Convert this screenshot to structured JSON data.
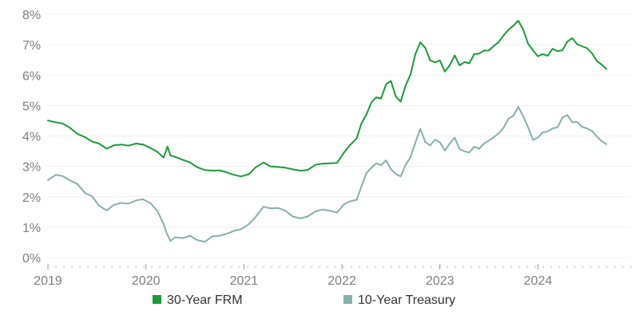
{
  "colors": {
    "frm": "#1a9a3c",
    "treasury": "#86b0ae",
    "axis_text": "#7f7f7f",
    "grid": "#efefef"
  },
  "chart_data": {
    "type": "line",
    "title": "",
    "xlabel": "",
    "ylabel": "",
    "xlim": [
      2019.0,
      2024.95
    ],
    "ylim": [
      0,
      8
    ],
    "y_ticks": [
      0,
      1,
      2,
      3,
      4,
      5,
      6,
      7,
      8
    ],
    "y_tick_labels": [
      "0%",
      "1%",
      "2%",
      "3%",
      "4%",
      "5%",
      "6%",
      "7%",
      "8%"
    ],
    "x_ticks": [
      2019,
      2020,
      2021,
      2022,
      2023,
      2024
    ],
    "x_tick_labels": [
      "2019",
      "2020",
      "2021",
      "2022",
      "2023",
      "2024"
    ],
    "grid": true,
    "legend_position": "bottom",
    "series": [
      {
        "name": "30-Year FRM",
        "color": "#1a9a3c",
        "x": [
          2019.0,
          2019.08,
          2019.15,
          2019.22,
          2019.3,
          2019.38,
          2019.45,
          2019.52,
          2019.6,
          2019.67,
          2019.75,
          2019.82,
          2019.9,
          2019.97,
          2020.05,
          2020.12,
          2020.18,
          2020.22,
          2020.25,
          2020.3,
          2020.38,
          2020.45,
          2020.52,
          2020.6,
          2020.68,
          2020.75,
          2020.82,
          2020.9,
          2020.97,
          2021.05,
          2021.12,
          2021.2,
          2021.27,
          2021.35,
          2021.42,
          2021.5,
          2021.58,
          2021.65,
          2021.73,
          2021.8,
          2021.88,
          2021.95,
          2022.02,
          2022.08,
          2022.15,
          2022.2,
          2022.25,
          2022.3,
          2022.35,
          2022.4,
          2022.45,
          2022.5,
          2022.55,
          2022.6,
          2022.65,
          2022.7,
          2022.75,
          2022.8,
          2022.85,
          2022.9,
          2022.95,
          2023.0,
          2023.05,
          2023.1,
          2023.15,
          2023.2,
          2023.25,
          2023.3,
          2023.35,
          2023.4,
          2023.45,
          2023.5,
          2023.55,
          2023.6,
          2023.65,
          2023.7,
          2023.75,
          2023.8,
          2023.85,
          2023.9,
          2023.95,
          2024.0,
          2024.05,
          2024.1,
          2024.15,
          2024.2,
          2024.25,
          2024.3,
          2024.35,
          2024.4,
          2024.45,
          2024.5,
          2024.55,
          2024.6,
          2024.65,
          2024.7
        ],
        "values": [
          4.51,
          4.45,
          4.41,
          4.28,
          4.07,
          3.96,
          3.82,
          3.75,
          3.58,
          3.69,
          3.72,
          3.68,
          3.75,
          3.72,
          3.6,
          3.47,
          3.29,
          3.65,
          3.36,
          3.31,
          3.21,
          3.13,
          2.98,
          2.88,
          2.86,
          2.87,
          2.81,
          2.72,
          2.67,
          2.74,
          2.97,
          3.13,
          3.0,
          2.98,
          2.96,
          2.9,
          2.86,
          2.88,
          3.05,
          3.09,
          3.1,
          3.11,
          3.45,
          3.69,
          3.92,
          4.42,
          4.7,
          5.1,
          5.27,
          5.23,
          5.7,
          5.81,
          5.3,
          5.13,
          5.66,
          6.02,
          6.7,
          7.08,
          6.9,
          6.49,
          6.42,
          6.48,
          6.12,
          6.32,
          6.65,
          6.32,
          6.43,
          6.39,
          6.69,
          6.71,
          6.81,
          6.81,
          6.96,
          7.09,
          7.31,
          7.49,
          7.63,
          7.79,
          7.5,
          7.03,
          6.82,
          6.62,
          6.69,
          6.64,
          6.87,
          6.79,
          6.82,
          7.1,
          7.22,
          7.02,
          6.95,
          6.89,
          6.73,
          6.47,
          6.35,
          6.2
        ]
      },
      {
        "name": "10-Year Treasury",
        "color": "#86b0ae",
        "x": [
          2019.0,
          2019.08,
          2019.15,
          2019.22,
          2019.3,
          2019.38,
          2019.45,
          2019.52,
          2019.6,
          2019.67,
          2019.75,
          2019.82,
          2019.9,
          2019.97,
          2020.05,
          2020.12,
          2020.18,
          2020.22,
          2020.25,
          2020.3,
          2020.38,
          2020.45,
          2020.52,
          2020.6,
          2020.68,
          2020.75,
          2020.82,
          2020.9,
          2020.97,
          2021.05,
          2021.12,
          2021.2,
          2021.27,
          2021.35,
          2021.42,
          2021.5,
          2021.58,
          2021.65,
          2021.73,
          2021.8,
          2021.88,
          2021.95,
          2022.02,
          2022.08,
          2022.15,
          2022.2,
          2022.25,
          2022.3,
          2022.35,
          2022.4,
          2022.45,
          2022.5,
          2022.55,
          2022.6,
          2022.65,
          2022.7,
          2022.75,
          2022.8,
          2022.85,
          2022.9,
          2022.95,
          2023.0,
          2023.05,
          2023.1,
          2023.15,
          2023.2,
          2023.25,
          2023.3,
          2023.35,
          2023.4,
          2023.45,
          2023.5,
          2023.55,
          2023.6,
          2023.65,
          2023.7,
          2023.75,
          2023.8,
          2023.85,
          2023.9,
          2023.95,
          2024.0,
          2024.05,
          2024.1,
          2024.15,
          2024.2,
          2024.25,
          2024.3,
          2024.35,
          2024.4,
          2024.45,
          2024.5,
          2024.55,
          2024.6,
          2024.65,
          2024.7
        ],
        "values": [
          2.55,
          2.72,
          2.68,
          2.55,
          2.42,
          2.12,
          2.02,
          1.71,
          1.55,
          1.73,
          1.8,
          1.77,
          1.88,
          1.92,
          1.78,
          1.52,
          1.1,
          0.74,
          0.55,
          0.67,
          0.64,
          0.72,
          0.58,
          0.52,
          0.7,
          0.72,
          0.78,
          0.88,
          0.93,
          1.1,
          1.34,
          1.67,
          1.62,
          1.63,
          1.55,
          1.35,
          1.29,
          1.35,
          1.52,
          1.58,
          1.54,
          1.48,
          1.75,
          1.85,
          1.9,
          2.35,
          2.78,
          2.95,
          3.1,
          3.04,
          3.2,
          2.91,
          2.75,
          2.67,
          3.05,
          3.3,
          3.79,
          4.24,
          3.8,
          3.69,
          3.88,
          3.79,
          3.52,
          3.75,
          3.95,
          3.57,
          3.49,
          3.46,
          3.65,
          3.58,
          3.75,
          3.85,
          3.96,
          4.09,
          4.27,
          4.57,
          4.67,
          4.96,
          4.65,
          4.28,
          3.87,
          3.95,
          4.12,
          4.15,
          4.25,
          4.28,
          4.6,
          4.69,
          4.45,
          4.46,
          4.3,
          4.25,
          4.17,
          3.99,
          3.83,
          3.73
        ]
      }
    ]
  }
}
